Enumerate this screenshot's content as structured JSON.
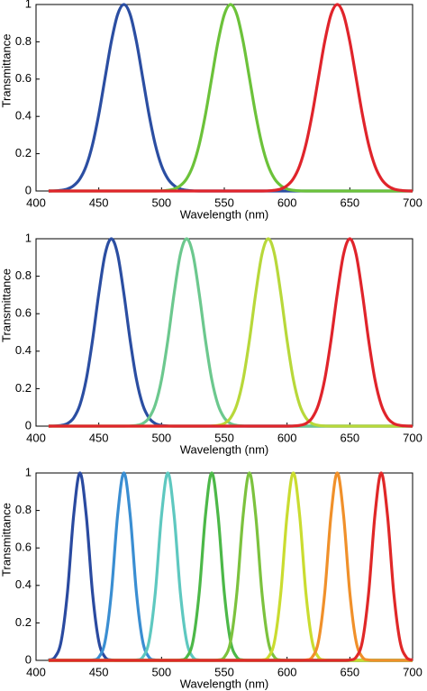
{
  "chart_data": [
    {
      "type": "line",
      "xlabel": "Wavelength (nm)",
      "ylabel": "Transmittance",
      "xlim": [
        400,
        700
      ],
      "ylim": [
        0,
        1
      ],
      "xticks": [
        400,
        450,
        500,
        550,
        600,
        650,
        700
      ],
      "yticks": [
        0,
        0.2,
        0.4,
        0.6,
        0.8,
        1
      ],
      "x": [
        410,
        415,
        420,
        425,
        430,
        435,
        440,
        445,
        450,
        455,
        460,
        465,
        470,
        475,
        480,
        485,
        490,
        495,
        500,
        505,
        510,
        515,
        520,
        525,
        530,
        535,
        540,
        545,
        550,
        555,
        560,
        565,
        570,
        575,
        580,
        585,
        590,
        595,
        600,
        605,
        610,
        615,
        620,
        625,
        630,
        635,
        640,
        645,
        650,
        655,
        660,
        665,
        670,
        675,
        680,
        685,
        690,
        695,
        700
      ],
      "series": [
        {
          "color": "#2b4ea2",
          "values": [
            0,
            0.001,
            0.004,
            0.011,
            0.029,
            0.066,
            0.135,
            0.249,
            0.411,
            0.607,
            0.801,
            0.946,
            1,
            0.946,
            0.801,
            0.607,
            0.411,
            0.249,
            0.135,
            0.066,
            0.029,
            0.011,
            0.004,
            0.001,
            0,
            0,
            0,
            0,
            0,
            0,
            0,
            0,
            0,
            0,
            0,
            0,
            0,
            0,
            0,
            0,
            0,
            0,
            0,
            0,
            0,
            0,
            0,
            0,
            0,
            0,
            0,
            0,
            0,
            0,
            0,
            0,
            0,
            0,
            0
          ]
        },
        {
          "color": "#6cc23a",
          "values": [
            0,
            0,
            0,
            0,
            0,
            0,
            0,
            0,
            0,
            0,
            0,
            0,
            0,
            0,
            0,
            0,
            0,
            0,
            0.001,
            0.004,
            0.011,
            0.029,
            0.066,
            0.135,
            0.249,
            0.411,
            0.607,
            0.801,
            0.946,
            1,
            0.946,
            0.801,
            0.607,
            0.411,
            0.249,
            0.135,
            0.066,
            0.029,
            0.011,
            0.004,
            0.001,
            0,
            0,
            0,
            0,
            0,
            0,
            0,
            0,
            0,
            0,
            0,
            0,
            0,
            0,
            0,
            0,
            0,
            0
          ]
        },
        {
          "color": "#e0242b",
          "values": [
            0,
            0,
            0,
            0,
            0,
            0,
            0,
            0,
            0,
            0,
            0,
            0,
            0,
            0,
            0,
            0,
            0,
            0,
            0,
            0,
            0,
            0,
            0,
            0,
            0,
            0,
            0,
            0,
            0,
            0,
            0,
            0,
            0,
            0,
            0,
            0.001,
            0.004,
            0.011,
            0.029,
            0.066,
            0.135,
            0.249,
            0.411,
            0.607,
            0.801,
            0.946,
            1,
            0.946,
            0.801,
            0.607,
            0.411,
            0.249,
            0.135,
            0.066,
            0.029,
            0.011,
            0.004,
            0.001,
            0
          ]
        }
      ]
    },
    {
      "type": "line",
      "xlabel": "Wavelength (nm)",
      "ylabel": "Transmittance",
      "xlim": [
        400,
        700
      ],
      "ylim": [
        0,
        1
      ],
      "xticks": [
        400,
        450,
        500,
        550,
        600,
        650,
        700
      ],
      "yticks": [
        0,
        0.2,
        0.4,
        0.6,
        0.8,
        1
      ],
      "x": [
        410,
        415,
        420,
        425,
        430,
        435,
        440,
        445,
        450,
        455,
        460,
        465,
        470,
        475,
        480,
        485,
        490,
        495,
        500,
        505,
        510,
        515,
        520,
        525,
        530,
        535,
        540,
        545,
        550,
        555,
        560,
        565,
        570,
        575,
        580,
        585,
        590,
        595,
        600,
        605,
        610,
        615,
        620,
        625,
        630,
        635,
        640,
        645,
        650,
        655,
        660,
        665,
        670,
        675,
        680,
        685,
        690,
        695,
        700
      ],
      "series": [
        {
          "color": "#2b4ea2",
          "values": [
            0,
            0.001,
            0.004,
            0.014,
            0.044,
            0.114,
            0.249,
            0.458,
            0.707,
            0.917,
            1,
            0.917,
            0.707,
            0.458,
            0.249,
            0.114,
            0.044,
            0.014,
            0.004,
            0.001,
            0,
            0,
            0,
            0,
            0,
            0,
            0,
            0,
            0,
            0,
            0,
            0,
            0,
            0,
            0,
            0,
            0,
            0,
            0,
            0,
            0,
            0,
            0,
            0,
            0,
            0,
            0,
            0,
            0,
            0,
            0,
            0,
            0,
            0,
            0,
            0,
            0,
            0,
            0
          ]
        },
        {
          "color": "#6cc88e",
          "values": [
            0,
            0,
            0,
            0,
            0,
            0,
            0,
            0,
            0,
            0,
            0,
            0,
            0,
            0.001,
            0.004,
            0.014,
            0.044,
            0.114,
            0.249,
            0.458,
            0.707,
            0.917,
            1,
            0.917,
            0.707,
            0.458,
            0.249,
            0.114,
            0.044,
            0.014,
            0.004,
            0.001,
            0,
            0,
            0,
            0,
            0,
            0,
            0,
            0,
            0,
            0,
            0,
            0,
            0,
            0,
            0,
            0,
            0,
            0,
            0,
            0,
            0,
            0,
            0,
            0,
            0,
            0,
            0
          ]
        },
        {
          "color": "#b8d83a",
          "values": [
            0,
            0,
            0,
            0,
            0,
            0,
            0,
            0,
            0,
            0,
            0,
            0,
            0,
            0,
            0,
            0,
            0,
            0,
            0,
            0,
            0,
            0,
            0,
            0,
            0,
            0,
            0.001,
            0.004,
            0.014,
            0.044,
            0.114,
            0.249,
            0.458,
            0.707,
            0.917,
            1,
            0.917,
            0.707,
            0.458,
            0.249,
            0.114,
            0.044,
            0.014,
            0.004,
            0.001,
            0,
            0,
            0,
            0,
            0,
            0,
            0,
            0,
            0,
            0,
            0,
            0,
            0,
            0
          ]
        },
        {
          "color": "#e0242b",
          "values": [
            0,
            0,
            0,
            0,
            0,
            0,
            0,
            0,
            0,
            0,
            0,
            0,
            0,
            0,
            0,
            0,
            0,
            0,
            0,
            0,
            0,
            0,
            0,
            0,
            0,
            0,
            0,
            0,
            0,
            0,
            0,
            0,
            0,
            0,
            0,
            0,
            0,
            0,
            0,
            0.001,
            0.004,
            0.014,
            0.044,
            0.114,
            0.249,
            0.458,
            0.707,
            0.917,
            1,
            0.917,
            0.707,
            0.458,
            0.249,
            0.114,
            0.044,
            0.014,
            0.004,
            0.001,
            0
          ]
        }
      ]
    },
    {
      "type": "line",
      "xlabel": "Wavelength (nm)",
      "ylabel": "Transmittance",
      "xlim": [
        400,
        700
      ],
      "ylim": [
        0,
        1
      ],
      "xticks": [
        400,
        450,
        500,
        550,
        600,
        650,
        700
      ],
      "yticks": [
        0,
        0.2,
        0.4,
        0.6,
        0.8,
        1
      ],
      "x": [
        410,
        415,
        420,
        425,
        430,
        435,
        440,
        445,
        450,
        455,
        460,
        465,
        470,
        475,
        480,
        485,
        490,
        495,
        500,
        505,
        510,
        515,
        520,
        525,
        530,
        535,
        540,
        545,
        550,
        555,
        560,
        565,
        570,
        575,
        580,
        585,
        590,
        595,
        600,
        605,
        610,
        615,
        620,
        625,
        630,
        635,
        640,
        645,
        650,
        655,
        660,
        665,
        670,
        675,
        680,
        685,
        690,
        695,
        700
      ],
      "series": [
        {
          "color": "#2a4aa0",
          "values": [
            0.002,
            0.017,
            0.101,
            0.36,
            0.775,
            1,
            0.775,
            0.36,
            0.101,
            0.017,
            0.002,
            0,
            0,
            0,
            0,
            0,
            0,
            0,
            0,
            0,
            0,
            0,
            0,
            0,
            0,
            0,
            0,
            0,
            0,
            0,
            0,
            0,
            0,
            0,
            0,
            0,
            0,
            0,
            0,
            0,
            0,
            0,
            0,
            0,
            0,
            0,
            0,
            0,
            0,
            0,
            0,
            0,
            0,
            0,
            0,
            0,
            0,
            0,
            0
          ]
        },
        {
          "color": "#3a8ed2",
          "values": [
            0,
            0,
            0,
            0,
            0,
            0,
            0,
            0.002,
            0.017,
            0.101,
            0.36,
            0.775,
            1,
            0.775,
            0.36,
            0.101,
            0.017,
            0.002,
            0,
            0,
            0,
            0,
            0,
            0,
            0,
            0,
            0,
            0,
            0,
            0,
            0,
            0,
            0,
            0,
            0,
            0,
            0,
            0,
            0,
            0,
            0,
            0,
            0,
            0,
            0,
            0,
            0,
            0,
            0,
            0,
            0,
            0,
            0,
            0,
            0,
            0,
            0,
            0,
            0
          ]
        },
        {
          "color": "#5ec8c0",
          "values": [
            0,
            0,
            0,
            0,
            0,
            0,
            0,
            0,
            0,
            0,
            0,
            0,
            0,
            0,
            0.002,
            0.017,
            0.101,
            0.36,
            0.775,
            1,
            0.775,
            0.36,
            0.101,
            0.017,
            0.002,
            0,
            0,
            0,
            0,
            0,
            0,
            0,
            0,
            0,
            0,
            0,
            0,
            0,
            0,
            0,
            0,
            0,
            0,
            0,
            0,
            0,
            0,
            0,
            0,
            0,
            0,
            0,
            0,
            0,
            0,
            0,
            0,
            0,
            0
          ]
        },
        {
          "color": "#4cb848",
          "values": [
            0,
            0,
            0,
            0,
            0,
            0,
            0,
            0,
            0,
            0,
            0,
            0,
            0,
            0,
            0,
            0,
            0,
            0,
            0,
            0,
            0,
            0.002,
            0.017,
            0.101,
            0.36,
            0.775,
            1,
            0.775,
            0.36,
            0.101,
            0.017,
            0.002,
            0,
            0,
            0,
            0,
            0,
            0,
            0,
            0,
            0,
            0,
            0,
            0,
            0,
            0,
            0,
            0,
            0,
            0,
            0,
            0,
            0,
            0,
            0,
            0,
            0,
            0,
            0
          ]
        },
        {
          "color": "#7cc23e",
          "values": [
            0,
            0,
            0,
            0,
            0,
            0,
            0,
            0,
            0,
            0,
            0,
            0,
            0,
            0,
            0,
            0,
            0,
            0,
            0,
            0,
            0,
            0,
            0,
            0,
            0,
            0,
            0,
            0.002,
            0.017,
            0.101,
            0.36,
            0.775,
            1,
            0.775,
            0.36,
            0.101,
            0.017,
            0.002,
            0,
            0,
            0,
            0,
            0,
            0,
            0,
            0,
            0,
            0,
            0,
            0,
            0,
            0,
            0,
            0,
            0,
            0,
            0,
            0,
            0
          ]
        },
        {
          "color": "#cadc30",
          "values": [
            0,
            0,
            0,
            0,
            0,
            0,
            0,
            0,
            0,
            0,
            0,
            0,
            0,
            0,
            0,
            0,
            0,
            0,
            0,
            0,
            0,
            0,
            0,
            0,
            0,
            0,
            0,
            0,
            0,
            0,
            0,
            0,
            0,
            0,
            0.002,
            0.017,
            0.101,
            0.36,
            0.775,
            1,
            0.775,
            0.36,
            0.101,
            0.017,
            0.002,
            0,
            0,
            0,
            0,
            0,
            0,
            0,
            0,
            0,
            0,
            0,
            0,
            0,
            0
          ]
        },
        {
          "color": "#f0902a",
          "values": [
            0,
            0,
            0,
            0,
            0,
            0,
            0,
            0,
            0,
            0,
            0,
            0,
            0,
            0,
            0,
            0,
            0,
            0,
            0,
            0,
            0,
            0,
            0,
            0,
            0,
            0,
            0,
            0,
            0,
            0,
            0,
            0,
            0,
            0,
            0,
            0,
            0,
            0,
            0,
            0,
            0,
            0.002,
            0.017,
            0.101,
            0.36,
            0.775,
            1,
            0.775,
            0.36,
            0.101,
            0.017,
            0.002,
            0,
            0,
            0,
            0,
            0,
            0,
            0
          ]
        },
        {
          "color": "#e02828",
          "values": [
            0,
            0,
            0,
            0,
            0,
            0,
            0,
            0,
            0,
            0,
            0,
            0,
            0,
            0,
            0,
            0,
            0,
            0,
            0,
            0,
            0,
            0,
            0,
            0,
            0,
            0,
            0,
            0,
            0,
            0,
            0,
            0,
            0,
            0,
            0,
            0,
            0,
            0,
            0,
            0,
            0,
            0,
            0,
            0,
            0,
            0,
            0,
            0,
            0.002,
            0.017,
            0.101,
            0.36,
            0.775,
            1,
            0.775,
            0.36,
            0.101,
            0.017,
            0.002
          ]
        }
      ]
    }
  ]
}
